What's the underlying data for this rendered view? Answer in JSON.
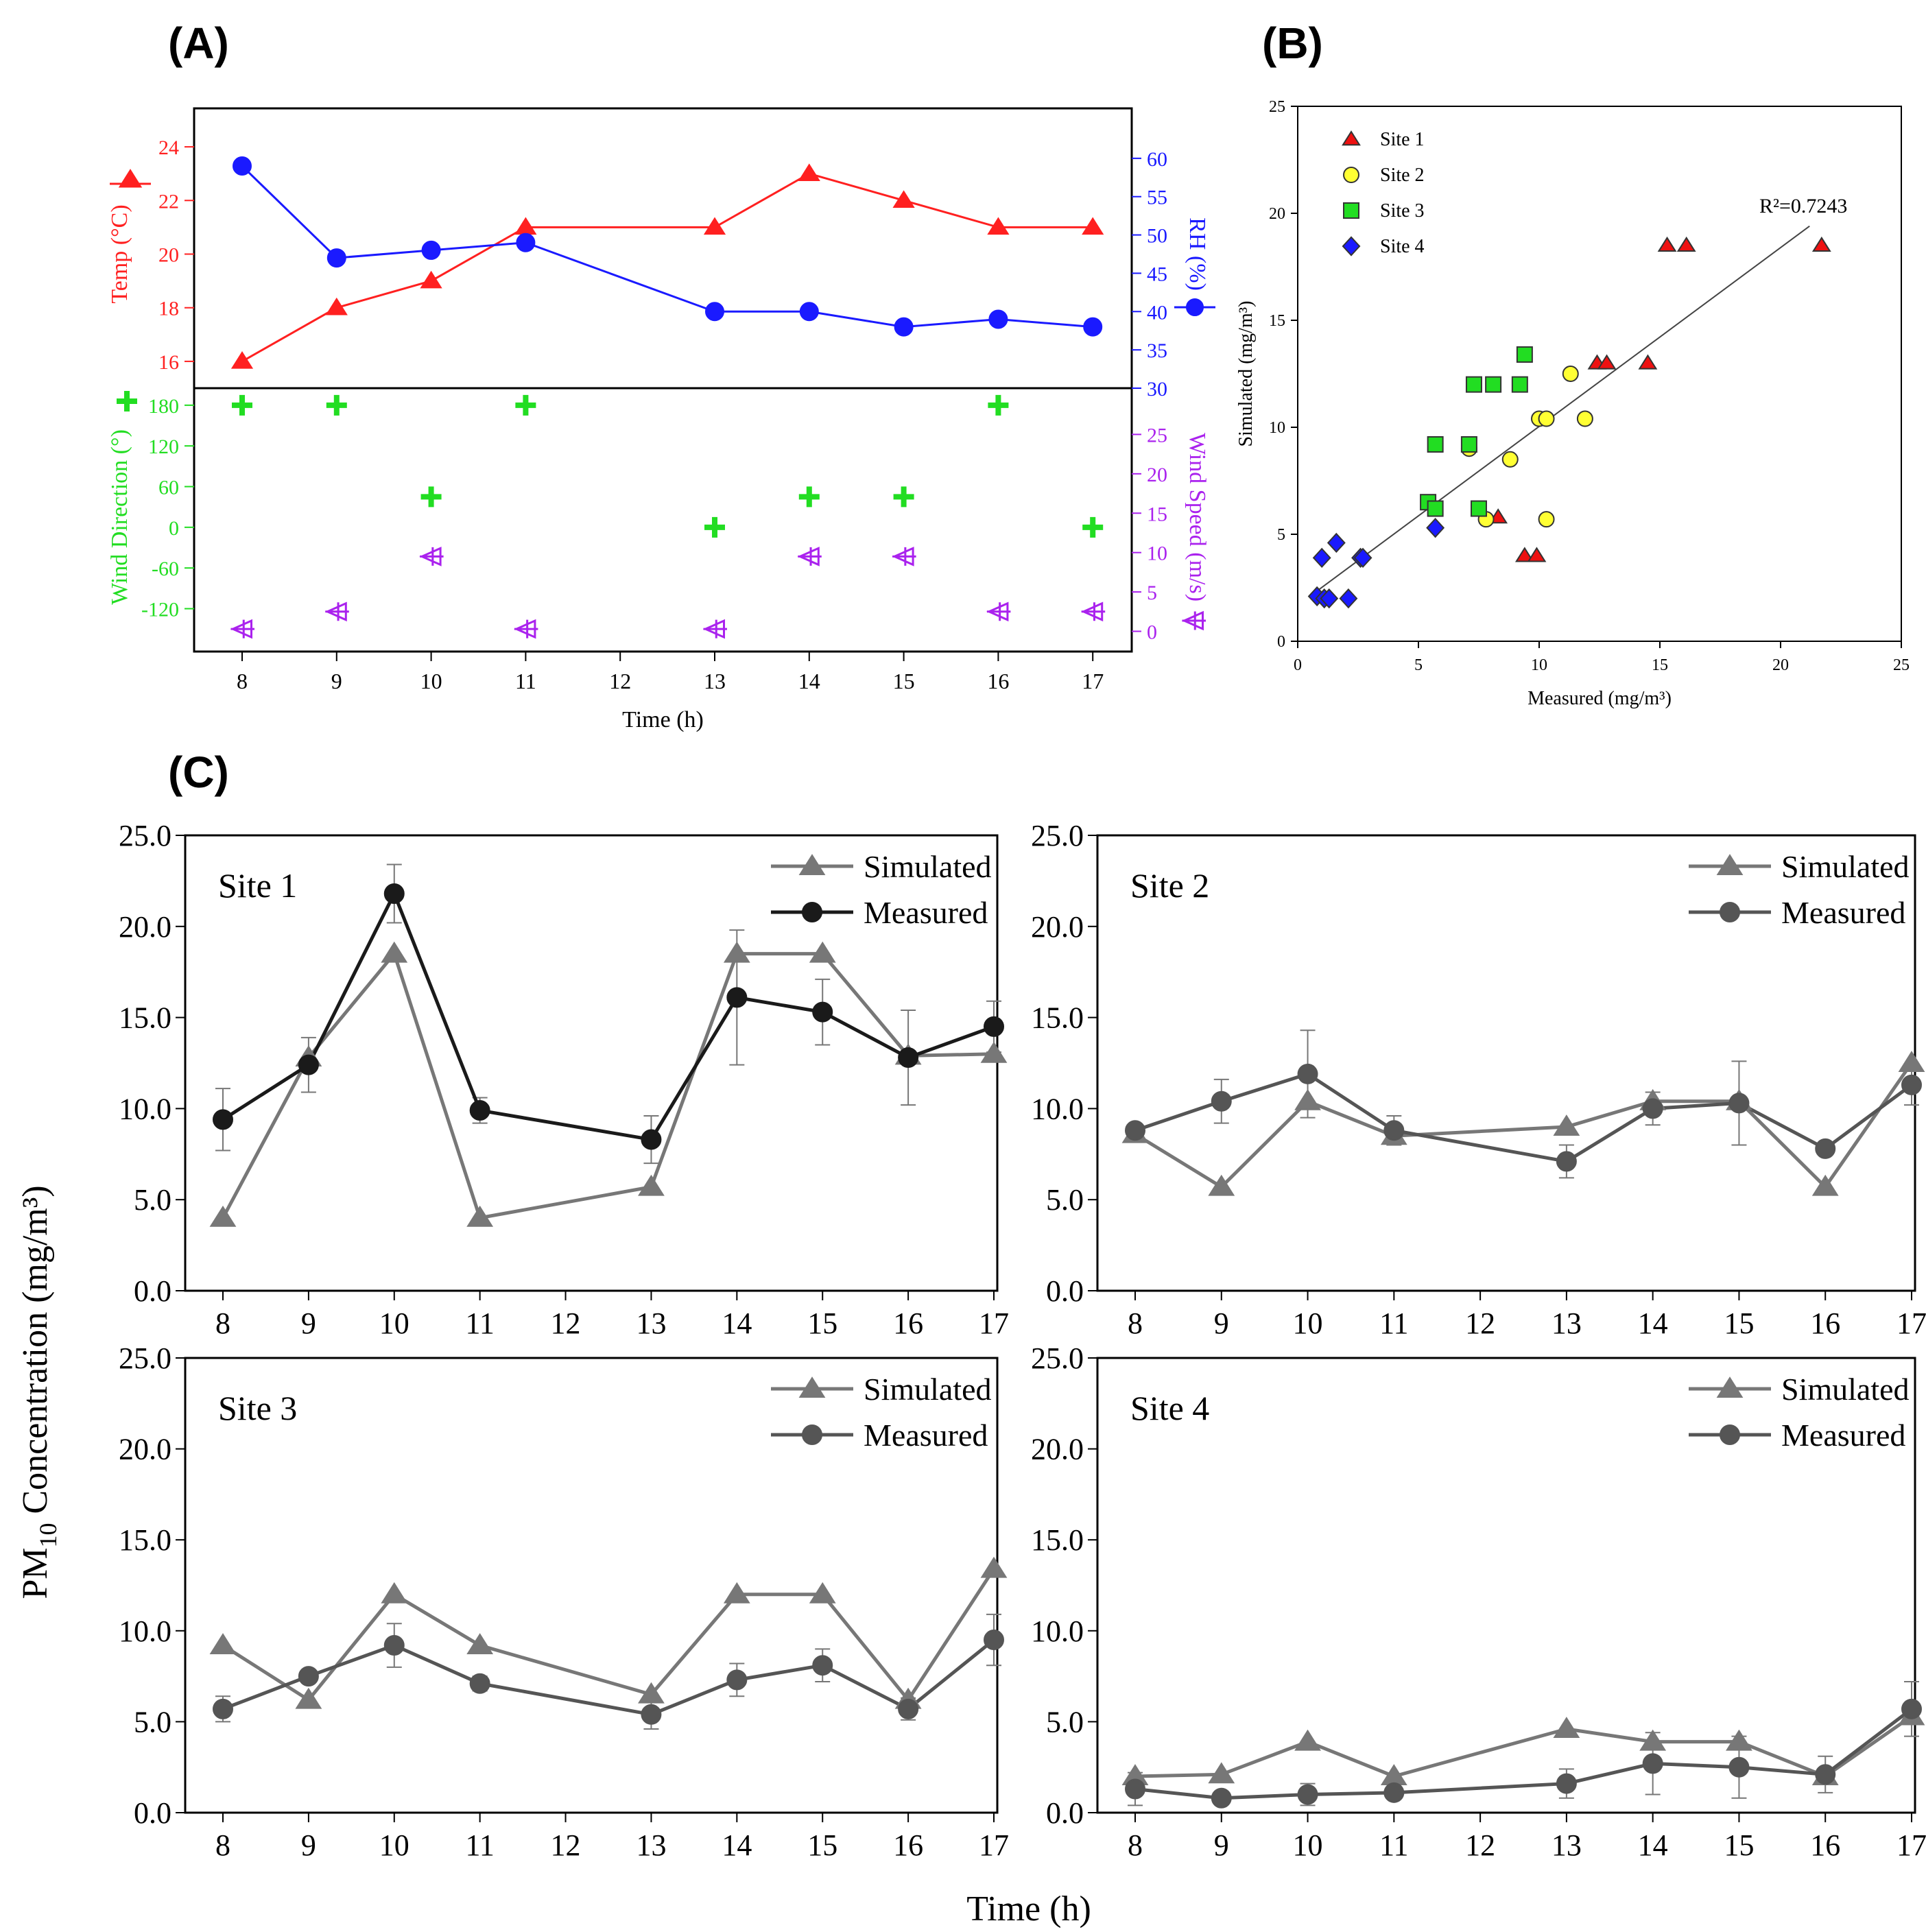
{
  "figure": {
    "panel_labels": [
      "(A)",
      "(B)",
      "(C)"
    ],
    "shared_y_label": "PM",
    "shared_y_label_sub": "10",
    "shared_y_label_rest": " Concentration (mg/m³)",
    "shared_x_label": "Time (h)"
  },
  "chart_data": [
    {
      "id": "A",
      "type": "line",
      "categories": [
        "8",
        "9",
        "10",
        "11",
        "12",
        "13",
        "14",
        "15",
        "16",
        "17"
      ],
      "x": [
        8,
        9,
        10,
        11,
        13,
        14,
        15,
        16,
        17
      ],
      "xlabel": "Time (h)",
      "top": {
        "left_axis": {
          "label": "Temp (°C)",
          "ylim": [
            15,
            25
          ],
          "ticks": [
            16,
            18,
            20,
            22,
            24
          ],
          "color": "#ff2020"
        },
        "right_axis": {
          "label": "RH (%)",
          "ylim": [
            30,
            65
          ],
          "ticks": [
            30,
            35,
            40,
            45,
            50,
            55,
            60
          ],
          "color": "#1a1aff"
        },
        "series": [
          {
            "name": "Temp",
            "axis": "left",
            "marker": "triangle",
            "color": "#ff2020",
            "values": [
              16,
              18,
              19,
              21,
              21,
              23,
              22,
              21,
              21
            ]
          },
          {
            "name": "RH",
            "axis": "right",
            "marker": "circle",
            "color": "#1a1aff",
            "values": [
              59,
              47,
              48,
              49,
              40,
              40,
              38,
              39,
              38
            ]
          }
        ]
      },
      "bottom": {
        "left_axis": {
          "label": "Wind Direction (°)",
          "ylim": [
            -165,
            195
          ],
          "ticks": [
            -120,
            -60,
            0,
            60,
            120,
            180
          ],
          "color": "#22dd22"
        },
        "right_axis": {
          "label": "Wind Speed (m/s)",
          "ylim": [
            -1,
            30
          ],
          "ticks": [
            0,
            5,
            10,
            15,
            20,
            25
          ],
          "color": "#aa22ee"
        },
        "series": [
          {
            "name": "Wind Direction",
            "axis": "left",
            "marker": "plus",
            "color": "#22dd22",
            "values": [
              180,
              180,
              45,
              180,
              0,
              45,
              45,
              180,
              0
            ]
          },
          {
            "name": "Wind Speed",
            "axis": "right",
            "marker": "arrow",
            "color": "#aa22ee",
            "values": [
              0.3,
              2.5,
              9.5,
              0.3,
              0.3,
              9.5,
              9.5,
              2.5,
              2.5
            ]
          }
        ]
      }
    },
    {
      "id": "B",
      "type": "scatter",
      "xlabel": "Measured (mg/m³)",
      "ylabel": "Simulated (mg/m³)",
      "xlim": [
        0,
        25
      ],
      "ylim": [
        0,
        25
      ],
      "xticks": [
        0,
        5,
        10,
        15,
        20,
        25
      ],
      "yticks": [
        0,
        5,
        10,
        15,
        20,
        25
      ],
      "annotation": "R²=0.7243",
      "fit_line": {
        "x": [
          0.8,
          21.2
        ],
        "y": [
          2.35,
          19.4
        ]
      },
      "series": [
        {
          "name": "Site 1",
          "marker": "triangle",
          "color": "#ee1111",
          "points": [
            [
              9.4,
              4
            ],
            [
              9.9,
              4
            ],
            [
              8.3,
              5.8
            ],
            [
              12.4,
              13
            ],
            [
              12.8,
              13
            ],
            [
              14.5,
              13
            ],
            [
              15.3,
              18.5
            ],
            [
              16.1,
              18.5
            ],
            [
              21.7,
              18.5
            ]
          ]
        },
        {
          "name": "Site 2",
          "marker": "circle",
          "color": "#ffff33",
          "points": [
            [
              7.1,
              9
            ],
            [
              7.8,
              5.7
            ],
            [
              8.8,
              8.5
            ],
            [
              10,
              10.4
            ],
            [
              10.3,
              10.4
            ],
            [
              10.3,
              5.7
            ],
            [
              11.3,
              12.5
            ],
            [
              11.9,
              10.4
            ]
          ]
        },
        {
          "name": "Site 3",
          "marker": "square",
          "color": "#22dd22",
          "points": [
            [
              5.4,
              6.5
            ],
            [
              5.7,
              6.2
            ],
            [
              5.7,
              9.2
            ],
            [
              7.1,
              9.2
            ],
            [
              7.3,
              12
            ],
            [
              7.5,
              6.2
            ],
            [
              8.1,
              12
            ],
            [
              9.2,
              12
            ],
            [
              9.4,
              13.4
            ]
          ]
        },
        {
          "name": "Site 4",
          "marker": "diamond",
          "color": "#1a1aff",
          "points": [
            [
              0.8,
              2.1
            ],
            [
              1.0,
              3.9
            ],
            [
              1.1,
              2.0
            ],
            [
              1.3,
              2.0
            ],
            [
              1.6,
              4.6
            ],
            [
              2.1,
              2.0
            ],
            [
              2.6,
              3.9
            ],
            [
              2.7,
              3.9
            ],
            [
              5.7,
              5.3
            ]
          ]
        }
      ]
    },
    {
      "id": "C1",
      "type": "line",
      "title": "Site 1",
      "categories": [
        "8",
        "9",
        "10",
        "11",
        "12",
        "13",
        "14",
        "15",
        "16",
        "17"
      ],
      "x": [
        8,
        9,
        10,
        11,
        13,
        14,
        15,
        16,
        17
      ],
      "ylim": [
        0,
        25
      ],
      "yticks": [
        "0.0",
        "5.0",
        "10.0",
        "15.0",
        "20.0",
        "25.0"
      ],
      "measured_color": "#1a1a1a",
      "series": [
        {
          "name": "Simulated",
          "values": [
            4.0,
            12.8,
            18.5,
            4.0,
            5.7,
            18.5,
            18.5,
            12.9,
            13.0
          ]
        },
        {
          "name": "Measured",
          "values": [
            9.4,
            12.4,
            21.8,
            9.9,
            8.3,
            16.1,
            15.3,
            12.8,
            14.5
          ],
          "error": [
            1.7,
            1.5,
            1.6,
            0.7,
            1.3,
            3.7,
            1.8,
            2.6,
            1.4
          ]
        }
      ]
    },
    {
      "id": "C2",
      "type": "line",
      "title": "Site 2",
      "categories": [
        "8",
        "9",
        "10",
        "11",
        "12",
        "13",
        "14",
        "15",
        "16",
        "17"
      ],
      "x": [
        8,
        9,
        10,
        11,
        13,
        14,
        15,
        16,
        17
      ],
      "ylim": [
        0,
        25
      ],
      "yticks": [
        "0.0",
        "5.0",
        "10.0",
        "15.0",
        "20.0",
        "25.0"
      ],
      "measured_color": "#555555",
      "series": [
        {
          "name": "Simulated",
          "values": [
            8.6,
            5.7,
            10.4,
            8.5,
            9.0,
            10.4,
            10.4,
            5.7,
            12.5
          ]
        },
        {
          "name": "Measured",
          "values": [
            8.8,
            10.4,
            11.9,
            8.8,
            7.1,
            10.0,
            10.3,
            7.8,
            11.3
          ],
          "error": [
            0.3,
            1.2,
            2.4,
            0.8,
            0.9,
            0.9,
            2.3,
            0.2,
            1.1
          ]
        }
      ]
    },
    {
      "id": "C3",
      "type": "line",
      "title": "Site 3",
      "categories": [
        "8",
        "9",
        "10",
        "11",
        "12",
        "13",
        "14",
        "15",
        "16",
        "17"
      ],
      "x": [
        8,
        9,
        10,
        11,
        13,
        14,
        15,
        16,
        17
      ],
      "ylim": [
        0,
        25
      ],
      "yticks": [
        "0.0",
        "5.0",
        "10.0",
        "15.0",
        "20.0",
        "25.0"
      ],
      "measured_color": "#555555",
      "series": [
        {
          "name": "Simulated",
          "values": [
            9.2,
            6.2,
            12.0,
            9.2,
            6.5,
            12.0,
            12.0,
            6.2,
            13.4
          ]
        },
        {
          "name": "Measured",
          "values": [
            5.7,
            7.5,
            9.2,
            7.1,
            5.4,
            7.3,
            8.1,
            5.7,
            9.5
          ],
          "error": [
            0.7,
            0.3,
            1.2,
            0.4,
            0.8,
            0.9,
            0.9,
            0.6,
            1.4
          ]
        }
      ]
    },
    {
      "id": "C4",
      "type": "line",
      "title": "Site 4",
      "categories": [
        "8",
        "9",
        "10",
        "11",
        "12",
        "13",
        "14",
        "15",
        "16",
        "17"
      ],
      "x": [
        8,
        9,
        10,
        11,
        13,
        14,
        15,
        16,
        17
      ],
      "ylim": [
        0,
        25
      ],
      "yticks": [
        "0.0",
        "5.0",
        "10.0",
        "15.0",
        "20.0",
        "25.0"
      ],
      "measured_color": "#555555",
      "series": [
        {
          "name": "Simulated",
          "values": [
            2.0,
            2.1,
            3.9,
            2.0,
            4.6,
            3.9,
            3.9,
            2.0,
            5.3
          ]
        },
        {
          "name": "Measured",
          "values": [
            1.3,
            0.8,
            1.0,
            1.1,
            1.6,
            2.7,
            2.5,
            2.1,
            5.7
          ],
          "error": [
            0.9,
            0.3,
            0.6,
            0.3,
            0.8,
            1.7,
            1.7,
            1.0,
            1.5
          ]
        }
      ]
    }
  ]
}
